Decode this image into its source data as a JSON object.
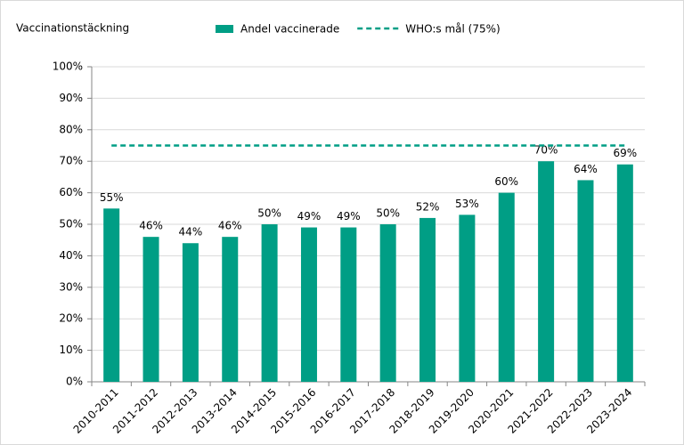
{
  "chart_data": {
    "type": "bar",
    "y_label": "Vaccinationstäckning",
    "categories": [
      "2010-2011",
      "2011-2012",
      "2012-2013",
      "2013-2014",
      "2014-2015",
      "2015-2016",
      "2016-2017",
      "2017-2018",
      "2018-2019",
      "2019-2020",
      "2020-2021",
      "2021-2022",
      "2022-2023",
      "2023-2024"
    ],
    "series": [
      {
        "name": "Andel vaccinerade",
        "type": "bar",
        "color": "#009e85",
        "values": [
          55,
          46,
          44,
          46,
          50,
          49,
          49,
          50,
          52,
          53,
          60,
          70,
          64,
          69
        ],
        "value_labels": [
          "55%",
          "46%",
          "44%",
          "46%",
          "50%",
          "49%",
          "49%",
          "50%",
          "52%",
          "53%",
          "60%",
          "70%",
          "64%",
          "69%"
        ]
      },
      {
        "name": "WHO:s mål (75%)",
        "type": "line",
        "dashed": true,
        "color": "#009e85",
        "values": [
          75,
          75,
          75,
          75,
          75,
          75,
          75,
          75,
          75,
          75,
          75,
          75,
          75,
          75
        ]
      }
    ],
    "ylim": [
      0,
      100
    ],
    "yticks": [
      {
        "value": 0,
        "label": "0%"
      },
      {
        "value": 10,
        "label": "10%"
      },
      {
        "value": 20,
        "label": "20%"
      },
      {
        "value": 30,
        "label": "30%"
      },
      {
        "value": 40,
        "label": "40%"
      },
      {
        "value": 50,
        "label": "50%"
      },
      {
        "value": 60,
        "label": "60%"
      },
      {
        "value": 70,
        "label": "70%"
      },
      {
        "value": 80,
        "label": "80%"
      },
      {
        "value": 90,
        "label": "90%"
      },
      {
        "value": 100,
        "label": "100%"
      }
    ],
    "grid": true
  }
}
